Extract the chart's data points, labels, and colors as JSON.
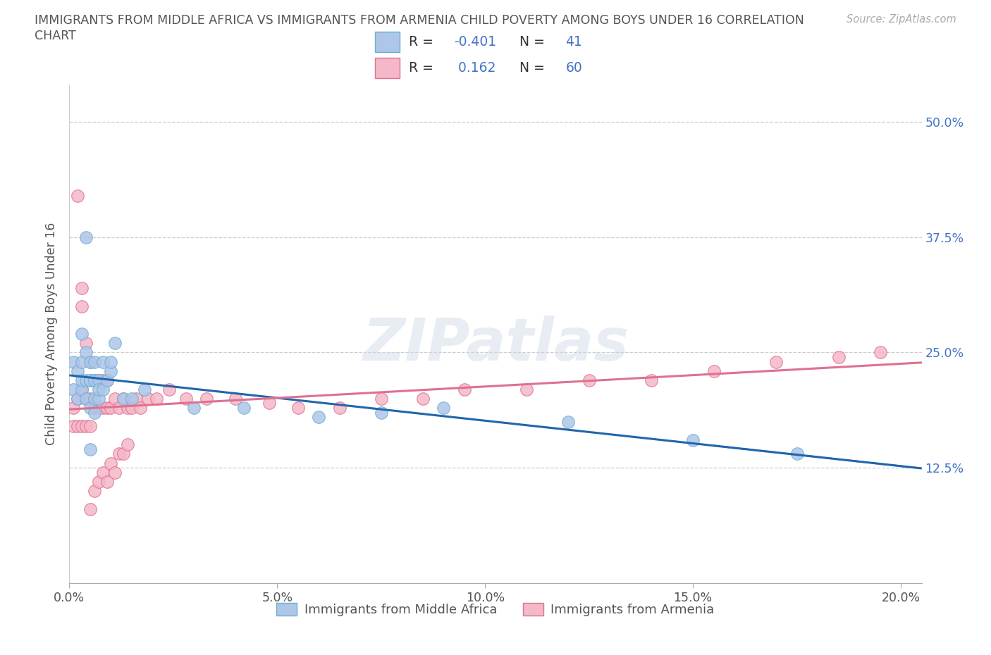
{
  "title_line1": "IMMIGRANTS FROM MIDDLE AFRICA VS IMMIGRANTS FROM ARMENIA CHILD POVERTY AMONG BOYS UNDER 16 CORRELATION",
  "title_line2": "CHART",
  "source_text": "Source: ZipAtlas.com",
  "ylabel": "Child Poverty Among Boys Under 16",
  "xlim": [
    0.0,
    0.205
  ],
  "ylim": [
    -0.02,
    0.54
  ],
  "plot_ylim": [
    0.0,
    0.54
  ],
  "xticks": [
    0.0,
    0.05,
    0.1,
    0.15,
    0.2
  ],
  "xtick_labels": [
    "0.0%",
    "5.0%",
    "10.0%",
    "15.0%",
    "20.0%"
  ],
  "ytick_positions": [
    0.0,
    0.125,
    0.25,
    0.375,
    0.5
  ],
  "ytick_labels_right": [
    "",
    "12.5%",
    "25.0%",
    "37.5%",
    "50.0%"
  ],
  "grid_yticks": [
    0.125,
    0.25,
    0.375,
    0.5
  ],
  "blue_color": "#aec6e8",
  "blue_edge": "#6baed6",
  "blue_trend_color": "#2166ac",
  "blue_R": -0.401,
  "blue_N": 41,
  "blue_label": "Immigrants from Middle Africa",
  "pink_color": "#f4b8c8",
  "pink_edge": "#e07090",
  "pink_trend_color": "#e07090",
  "pink_R": 0.162,
  "pink_N": 60,
  "pink_label": "Immigrants from Armenia",
  "watermark": "ZIPatlas",
  "bg_color": "#ffffff",
  "grid_color": "#cccccc",
  "title_color": "#555555",
  "right_tick_color": "#4472c4",
  "blue_x": [
    0.001,
    0.001,
    0.002,
    0.002,
    0.003,
    0.003,
    0.003,
    0.003,
    0.004,
    0.004,
    0.004,
    0.005,
    0.005,
    0.005,
    0.005,
    0.006,
    0.006,
    0.006,
    0.007,
    0.007,
    0.007,
    0.008,
    0.008,
    0.009,
    0.01,
    0.01,
    0.011,
    0.013,
    0.015,
    0.018,
    0.03,
    0.042,
    0.06,
    0.075,
    0.09,
    0.12,
    0.15,
    0.175,
    0.004,
    0.005,
    0.006
  ],
  "blue_y": [
    0.21,
    0.24,
    0.2,
    0.23,
    0.21,
    0.22,
    0.24,
    0.27,
    0.2,
    0.22,
    0.25,
    0.19,
    0.22,
    0.24,
    0.22,
    0.2,
    0.22,
    0.24,
    0.2,
    0.22,
    0.21,
    0.21,
    0.24,
    0.22,
    0.23,
    0.24,
    0.26,
    0.2,
    0.2,
    0.21,
    0.19,
    0.19,
    0.18,
    0.185,
    0.19,
    0.175,
    0.155,
    0.14,
    0.375,
    0.145,
    0.185
  ],
  "pink_x": [
    0.001,
    0.001,
    0.002,
    0.002,
    0.003,
    0.003,
    0.004,
    0.004,
    0.005,
    0.005,
    0.005,
    0.006,
    0.006,
    0.007,
    0.007,
    0.008,
    0.008,
    0.009,
    0.009,
    0.01,
    0.011,
    0.012,
    0.013,
    0.014,
    0.015,
    0.016,
    0.017,
    0.019,
    0.021,
    0.024,
    0.028,
    0.033,
    0.04,
    0.048,
    0.055,
    0.065,
    0.075,
    0.085,
    0.095,
    0.11,
    0.125,
    0.14,
    0.155,
    0.17,
    0.185,
    0.195,
    0.003,
    0.004,
    0.005,
    0.006,
    0.007,
    0.008,
    0.009,
    0.01,
    0.011,
    0.012,
    0.013,
    0.014,
    0.002,
    0.003
  ],
  "pink_y": [
    0.17,
    0.19,
    0.17,
    0.2,
    0.17,
    0.21,
    0.17,
    0.2,
    0.17,
    0.2,
    0.24,
    0.19,
    0.22,
    0.19,
    0.22,
    0.19,
    0.22,
    0.19,
    0.22,
    0.19,
    0.2,
    0.19,
    0.2,
    0.19,
    0.19,
    0.2,
    0.19,
    0.2,
    0.2,
    0.21,
    0.2,
    0.2,
    0.2,
    0.195,
    0.19,
    0.19,
    0.2,
    0.2,
    0.21,
    0.21,
    0.22,
    0.22,
    0.23,
    0.24,
    0.245,
    0.25,
    0.3,
    0.26,
    0.08,
    0.1,
    0.11,
    0.12,
    0.11,
    0.13,
    0.12,
    0.14,
    0.14,
    0.15,
    0.42,
    0.32
  ]
}
